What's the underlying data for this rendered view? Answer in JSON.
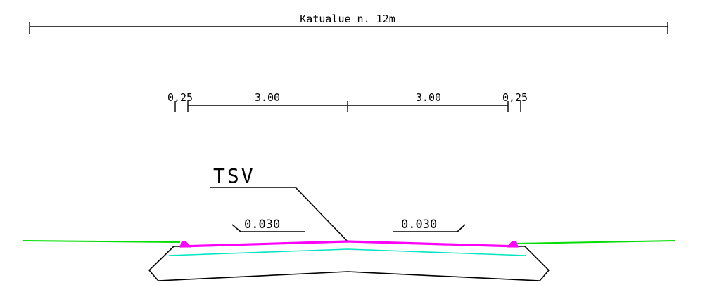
{
  "dimensions": {
    "street_area_label": "Katualue n. 12m",
    "lane_left": "3.00",
    "lane_right": "3.00",
    "shoulder_left": "0,25",
    "shoulder_right": "0,25"
  },
  "labels": {
    "structure": "TSV",
    "slope_left": "0.030",
    "slope_right": "0.030"
  },
  "colors": {
    "ink": "#000000",
    "pavement_surface": "#ff00ff",
    "base_layer": "#00e5c0",
    "ground_line": "#00dd00"
  }
}
